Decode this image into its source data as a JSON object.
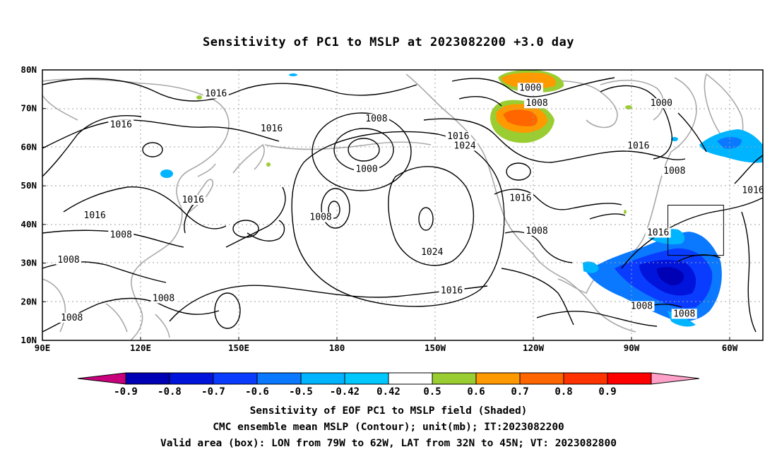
{
  "title": "Sensitivity of PC1 to MSLP at 2023082200 +3.0 day",
  "axes": {
    "lat_ticks": [
      "80N",
      "70N",
      "60N",
      "50N",
      "40N",
      "30N",
      "20N",
      "10N"
    ],
    "lon_ticks": [
      "90E",
      "120E",
      "150E",
      "180",
      "150W",
      "120W",
      "90W",
      "60W"
    ],
    "lon_range": [
      90,
      310
    ],
    "lat_range": [
      10,
      80
    ],
    "grid": "dotted"
  },
  "contour_labels": [
    {
      "text": "1016",
      "lon": 143,
      "lat": 73.5
    },
    {
      "text": "1016",
      "lon": 114,
      "lat": 65.5
    },
    {
      "text": "1016",
      "lon": 160,
      "lat": 64.5
    },
    {
      "text": "1008",
      "lon": 192,
      "lat": 67.0
    },
    {
      "text": "1000",
      "lon": 189,
      "lat": 54.0
    },
    {
      "text": "1016",
      "lon": 217,
      "lat": 62.5
    },
    {
      "text": "1024",
      "lon": 219,
      "lat": 60.0
    },
    {
      "text": "1000",
      "lon": 239,
      "lat": 75.0
    },
    {
      "text": "1008",
      "lon": 241,
      "lat": 71.0
    },
    {
      "text": "1000",
      "lon": 279,
      "lat": 71.0
    },
    {
      "text": "1016",
      "lon": 272,
      "lat": 60.0
    },
    {
      "text": "1008",
      "lon": 283,
      "lat": 53.5
    },
    {
      "text": "1016",
      "lon": 307,
      "lat": 48.5
    },
    {
      "text": "1016",
      "lon": 136,
      "lat": 46.0
    },
    {
      "text": "1016",
      "lon": 106,
      "lat": 42.0
    },
    {
      "text": "1008",
      "lon": 175,
      "lat": 41.5
    },
    {
      "text": "1016",
      "lon": 236,
      "lat": 46.5
    },
    {
      "text": "1008",
      "lon": 114,
      "lat": 37.0
    },
    {
      "text": "1008",
      "lon": 241,
      "lat": 38.0
    },
    {
      "text": "1024",
      "lon": 209,
      "lat": 32.5
    },
    {
      "text": "1016",
      "lon": 278,
      "lat": 37.5
    },
    {
      "text": "1008",
      "lon": 98,
      "lat": 30.5
    },
    {
      "text": "1016",
      "lon": 215,
      "lat": 22.5
    },
    {
      "text": "1008",
      "lon": 127,
      "lat": 20.5
    },
    {
      "text": "1008",
      "lon": 273,
      "lat": 18.5
    },
    {
      "text": "1008",
      "lon": 286,
      "lat": 16.5
    },
    {
      "text": "1008",
      "lon": 99,
      "lat": 15.5
    }
  ],
  "valid_box": {
    "lon_min": 281,
    "lon_max": 298,
    "lat_min": 32,
    "lat_max": 45
  },
  "colorbar": {
    "labels": [
      "-0.9",
      "-0.8",
      "-0.7",
      "-0.6",
      "-0.5",
      "-0.42",
      "0.42",
      "0.5",
      "0.6",
      "0.7",
      "0.8",
      "0.9"
    ],
    "colors": [
      "#c8007c",
      "#0000b4",
      "#0014dc",
      "#0a3cff",
      "#0a78ff",
      "#00b4ff",
      "#00c8ff",
      "#ffffff",
      "#9acd32",
      "#ff9900",
      "#ff6600",
      "#ff3300",
      "#ff0000",
      "#ffa0c8"
    ]
  },
  "footer": {
    "line1": "Sensitivity of EOF PC1 to MSLP field (Shaded)",
    "line2": "CMC ensemble mean MSLP (Contour); unit(mb); IT:2023082200",
    "line3": "Valid area (box): LON from 79W to 62W, LAT from 32N to 45N; VT: 2023082800"
  }
}
